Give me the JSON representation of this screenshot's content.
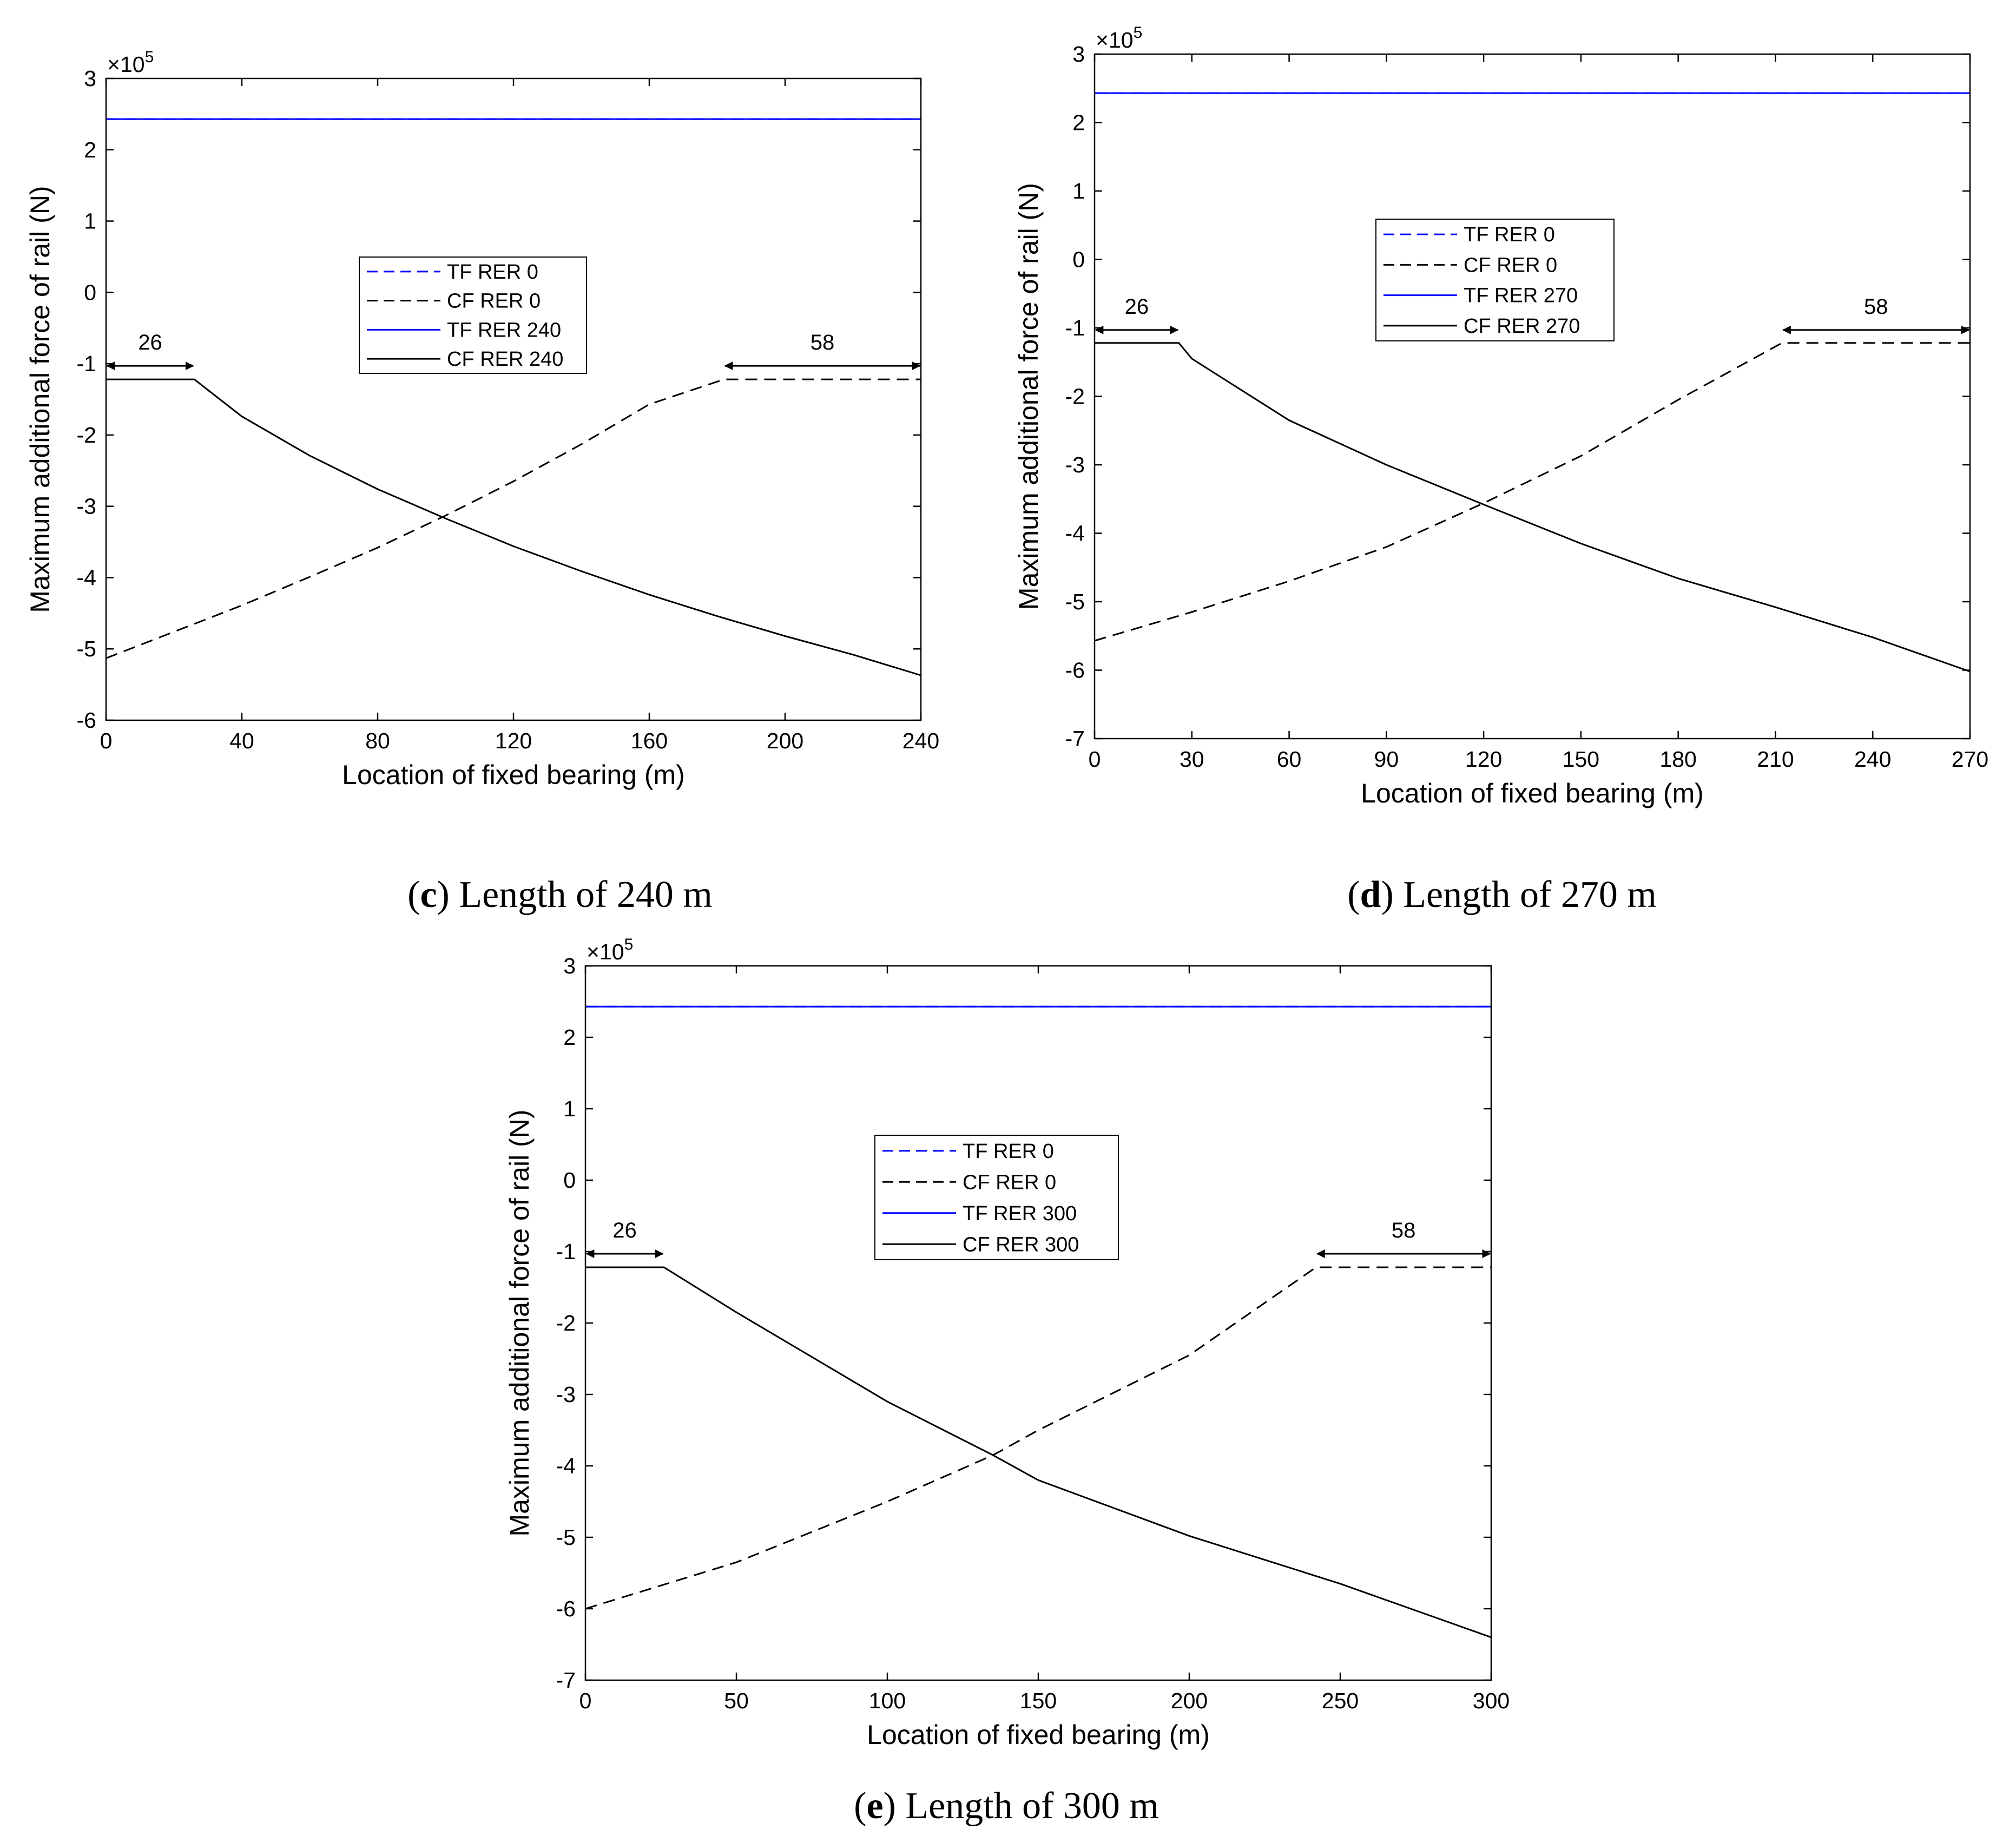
{
  "chart_data": [
    {
      "type": "line",
      "panel": "c",
      "caption": {
        "letter": "c",
        "text": "Length of 240 m"
      },
      "xlabel": "Location of fixed bearing (m)",
      "ylabel": "Maximum additional force of rail (N)",
      "multiplier": {
        "base": "×10",
        "exp": "5"
      },
      "xlim": [
        0,
        240
      ],
      "ylim": [
        -6,
        3
      ],
      "xticks": [
        0,
        40,
        80,
        120,
        160,
        200,
        240
      ],
      "yticks": [
        3,
        2,
        1,
        0,
        -1,
        -2,
        -3,
        -4,
        -5,
        -6
      ],
      "legend": {
        "position": "center-left",
        "entries": [
          "TF RER 0",
          "CF RER 0",
          "TF RER 240",
          "CF RER 240"
        ]
      },
      "series": [
        {
          "name": "TF RER 0",
          "style": "dashed",
          "color": "#0000ff",
          "x": [
            0,
            240
          ],
          "y": [
            2.43,
            2.43
          ]
        },
        {
          "name": "CF RER 0",
          "style": "dashed",
          "color": "#000000",
          "x": [
            0,
            20,
            40,
            60,
            80,
            100,
            120,
            140,
            160,
            182,
            240
          ],
          "y": [
            -5.13,
            -4.76,
            -4.39,
            -3.99,
            -3.58,
            -3.13,
            -2.65,
            -2.13,
            -1.57,
            -1.22,
            -1.22
          ]
        },
        {
          "name": "TF RER 240",
          "style": "solid",
          "color": "#0000ff",
          "x": [
            0,
            240
          ],
          "y": [
            2.43,
            2.43
          ]
        },
        {
          "name": "CF RER 240",
          "style": "solid",
          "color": "#000000",
          "x": [
            0,
            26,
            40,
            60,
            80,
            100,
            120,
            140,
            160,
            180,
            200,
            220,
            240
          ],
          "y": [
            -1.22,
            -1.22,
            -1.74,
            -2.29,
            -2.76,
            -3.17,
            -3.56,
            -3.91,
            -4.24,
            -4.54,
            -4.82,
            -5.08,
            -5.37
          ]
        }
      ],
      "annotations": [
        {
          "label": "26",
          "from": 0,
          "to": 26,
          "y": -1.03
        },
        {
          "label": "58",
          "from": 182,
          "to": 240,
          "y": -1.03
        }
      ]
    },
    {
      "type": "line",
      "panel": "d",
      "caption": {
        "letter": "d",
        "text": "Length of 270 m"
      },
      "xlabel": "Location of fixed bearing (m)",
      "ylabel": "Maximum additional force of rail (N)",
      "multiplier": {
        "base": "×10",
        "exp": "5"
      },
      "xlim": [
        0,
        270
      ],
      "ylim": [
        -7,
        3
      ],
      "xticks": [
        0,
        30,
        60,
        90,
        120,
        150,
        180,
        210,
        240,
        270
      ],
      "yticks": [
        3,
        2,
        1,
        0,
        -1,
        -2,
        -3,
        -4,
        -5,
        -6,
        -7
      ],
      "legend": {
        "position": "upper-center-left",
        "entries": [
          "TF RER 0",
          "CF RER 0",
          "TF RER 270",
          "CF RER 270"
        ]
      },
      "series": [
        {
          "name": "TF RER 0",
          "style": "dashed",
          "color": "#0000ff",
          "x": [
            0,
            270
          ],
          "y": [
            2.43,
            2.43
          ]
        },
        {
          "name": "CF RER 0",
          "style": "dashed",
          "color": "#000000",
          "x": [
            0,
            30,
            60,
            90,
            120,
            150,
            180,
            212,
            270
          ],
          "y": [
            -5.57,
            -5.15,
            -4.7,
            -4.2,
            -3.56,
            -2.87,
            -2.05,
            -1.22,
            -1.22
          ]
        },
        {
          "name": "TF RER 270",
          "style": "solid",
          "color": "#0000ff",
          "x": [
            0,
            270
          ],
          "y": [
            2.43,
            2.43
          ]
        },
        {
          "name": "CF RER 270",
          "style": "solid",
          "color": "#000000",
          "x": [
            0,
            26,
            30,
            60,
            90,
            120,
            150,
            180,
            210,
            240,
            270
          ],
          "y": [
            -1.22,
            -1.22,
            -1.45,
            -2.35,
            -3.0,
            -3.58,
            -4.15,
            -4.66,
            -5.08,
            -5.52,
            -6.02
          ]
        }
      ],
      "annotations": [
        {
          "label": "26",
          "from": 0,
          "to": 26,
          "y": -1.03
        },
        {
          "label": "58",
          "from": 212,
          "to": 270,
          "y": -1.03
        }
      ]
    },
    {
      "type": "line",
      "panel": "e",
      "caption": {
        "letter": "e",
        "text": "Length of 300 m"
      },
      "xlabel": "Location of fixed bearing (m)",
      "ylabel": "Maximum additional force of rail (N)",
      "multiplier": {
        "base": "×10",
        "exp": "5"
      },
      "xlim": [
        0,
        300
      ],
      "ylim": [
        -7,
        3
      ],
      "xticks": [
        0,
        50,
        100,
        150,
        200,
        250,
        300
      ],
      "yticks": [
        3,
        2,
        1,
        0,
        -1,
        -2,
        -3,
        -4,
        -5,
        -6,
        -7
      ],
      "legend": {
        "position": "upper-center",
        "entries": [
          "TF RER 0",
          "CF RER 0",
          "TF RER 300",
          "CF RER 300"
        ]
      },
      "series": [
        {
          "name": "TF RER 0",
          "style": "dashed",
          "color": "#0000ff",
          "x": [
            0,
            300
          ],
          "y": [
            2.43,
            2.43
          ]
        },
        {
          "name": "CF RER 0",
          "style": "dashed",
          "color": "#000000",
          "x": [
            0,
            50,
            100,
            135,
            150,
            200,
            242,
            300
          ],
          "y": [
            -6.0,
            -5.35,
            -4.5,
            -3.85,
            -3.5,
            -2.45,
            -1.22,
            -1.22
          ]
        },
        {
          "name": "TF RER 300",
          "style": "solid",
          "color": "#0000ff",
          "x": [
            0,
            300
          ],
          "y": [
            2.43,
            2.43
          ]
        },
        {
          "name": "CF RER 300",
          "style": "solid",
          "color": "#000000",
          "x": [
            0,
            26,
            50,
            100,
            135,
            150,
            200,
            250,
            300
          ],
          "y": [
            -1.22,
            -1.22,
            -1.85,
            -3.1,
            -3.85,
            -4.2,
            -4.98,
            -5.65,
            -6.4
          ]
        }
      ],
      "annotations": [
        {
          "label": "26",
          "from": 0,
          "to": 26,
          "y": -1.03
        },
        {
          "label": "58",
          "from": 242,
          "to": 300,
          "y": -1.03
        }
      ]
    }
  ]
}
